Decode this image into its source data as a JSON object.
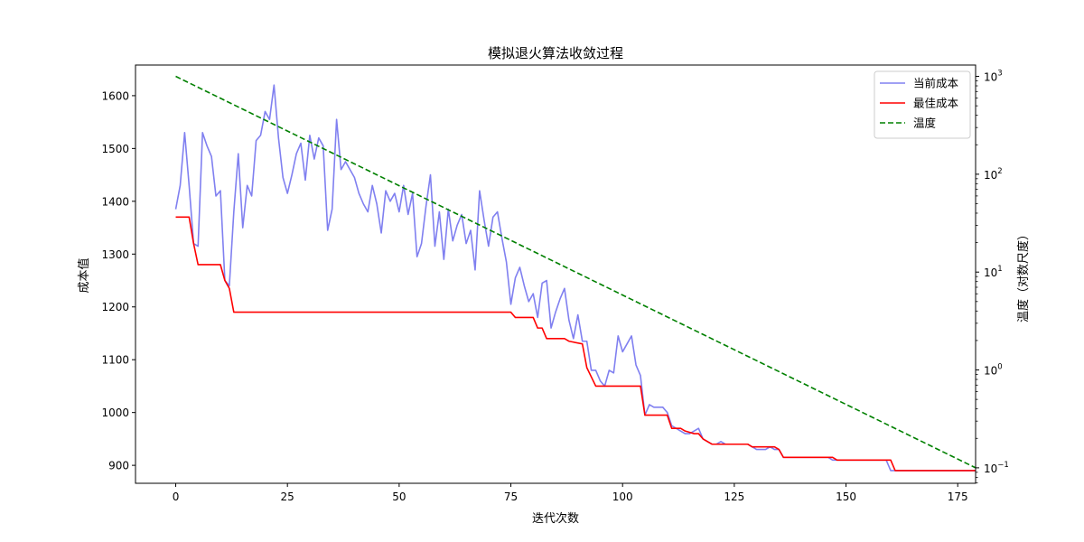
{
  "chart_data": {
    "type": "line",
    "title": "模拟退火算法收敛过程",
    "xlabel": "迭代次数",
    "ylabel": "成本值",
    "y2label": "温度（对数尺度）",
    "xlim": [
      -9,
      179
    ],
    "ylim": [
      866,
      1658
    ],
    "y2lim": [
      0.0695,
      1305
    ],
    "y2scale": "log",
    "xticks": [
      0,
      25,
      50,
      75,
      100,
      125,
      150,
      175
    ],
    "yticks": [
      900,
      1000,
      1100,
      1200,
      1300,
      1400,
      1500,
      1600
    ],
    "y2ticks": [
      0.1,
      1,
      10,
      100,
      1000
    ],
    "y2ticklabels": [
      {
        "base": "10",
        "exp": "−1"
      },
      {
        "base": "10",
        "exp": "0"
      },
      {
        "base": "10",
        "exp": "1"
      },
      {
        "base": "10",
        "exp": "2"
      },
      {
        "base": "10",
        "exp": "3"
      }
    ],
    "grid": false,
    "legend_position": "top-right",
    "series": [
      {
        "name": "当前成本",
        "axis": "left",
        "color": "#8080f0",
        "dash": "solid",
        "points": [
          [
            0,
            1385
          ],
          [
            1,
            1430
          ],
          [
            2,
            1530
          ],
          [
            3,
            1430
          ],
          [
            4,
            1320
          ],
          [
            5,
            1315
          ],
          [
            6,
            1530
          ],
          [
            7,
            1505
          ],
          [
            8,
            1485
          ],
          [
            9,
            1410
          ],
          [
            10,
            1420
          ],
          [
            11,
            1250
          ],
          [
            12,
            1240
          ],
          [
            13,
            1380
          ],
          [
            14,
            1490
          ],
          [
            15,
            1350
          ],
          [
            16,
            1430
          ],
          [
            17,
            1410
          ],
          [
            18,
            1515
          ],
          [
            19,
            1525
          ],
          [
            20,
            1570
          ],
          [
            21,
            1555
          ],
          [
            22,
            1620
          ],
          [
            23,
            1520
          ],
          [
            24,
            1445
          ],
          [
            25,
            1415
          ],
          [
            26,
            1450
          ],
          [
            27,
            1490
          ],
          [
            28,
            1510
          ],
          [
            29,
            1440
          ],
          [
            30,
            1525
          ],
          [
            31,
            1480
          ],
          [
            32,
            1520
          ],
          [
            33,
            1505
          ],
          [
            34,
            1345
          ],
          [
            35,
            1385
          ],
          [
            36,
            1555
          ],
          [
            37,
            1460
          ],
          [
            38,
            1475
          ],
          [
            39,
            1460
          ],
          [
            40,
            1445
          ],
          [
            41,
            1415
          ],
          [
            42,
            1395
          ],
          [
            43,
            1380
          ],
          [
            44,
            1430
          ],
          [
            45,
            1395
          ],
          [
            46,
            1340
          ],
          [
            47,
            1420
          ],
          [
            48,
            1400
          ],
          [
            49,
            1415
          ],
          [
            50,
            1380
          ],
          [
            51,
            1430
          ],
          [
            52,
            1375
          ],
          [
            53,
            1415
          ],
          [
            54,
            1295
          ],
          [
            55,
            1320
          ],
          [
            56,
            1390
          ],
          [
            57,
            1450
          ],
          [
            58,
            1315
          ],
          [
            59,
            1380
          ],
          [
            60,
            1290
          ],
          [
            61,
            1385
          ],
          [
            62,
            1325
          ],
          [
            63,
            1355
          ],
          [
            64,
            1375
          ],
          [
            65,
            1320
          ],
          [
            66,
            1345
          ],
          [
            67,
            1270
          ],
          [
            68,
            1420
          ],
          [
            69,
            1365
          ],
          [
            70,
            1315
          ],
          [
            71,
            1370
          ],
          [
            72,
            1380
          ],
          [
            73,
            1330
          ],
          [
            74,
            1285
          ],
          [
            75,
            1205
          ],
          [
            76,
            1255
          ],
          [
            77,
            1275
          ],
          [
            78,
            1240
          ],
          [
            79,
            1210
          ],
          [
            80,
            1225
          ],
          [
            81,
            1180
          ],
          [
            82,
            1245
          ],
          [
            83,
            1250
          ],
          [
            84,
            1160
          ],
          [
            85,
            1190
          ],
          [
            86,
            1215
          ],
          [
            87,
            1235
          ],
          [
            88,
            1175
          ],
          [
            89,
            1140
          ],
          [
            90,
            1185
          ],
          [
            91,
            1135
          ],
          [
            92,
            1135
          ],
          [
            93,
            1080
          ],
          [
            94,
            1080
          ],
          [
            95,
            1060
          ],
          [
            96,
            1050
          ],
          [
            97,
            1080
          ],
          [
            98,
            1075
          ],
          [
            99,
            1145
          ],
          [
            100,
            1115
          ],
          [
            101,
            1130
          ],
          [
            102,
            1145
          ],
          [
            103,
            1090
          ],
          [
            104,
            1070
          ],
          [
            105,
            995
          ],
          [
            106,
            1015
          ],
          [
            107,
            1010
          ],
          [
            108,
            1010
          ],
          [
            109,
            1010
          ],
          [
            110,
            1000
          ],
          [
            111,
            975
          ],
          [
            112,
            970
          ],
          [
            113,
            965
          ],
          [
            114,
            960
          ],
          [
            115,
            960
          ],
          [
            116,
            965
          ],
          [
            117,
            970
          ],
          [
            118,
            950
          ],
          [
            119,
            945
          ],
          [
            120,
            940
          ],
          [
            121,
            940
          ],
          [
            122,
            945
          ],
          [
            123,
            940
          ],
          [
            124,
            940
          ],
          [
            125,
            940
          ],
          [
            126,
            940
          ],
          [
            127,
            940
          ],
          [
            128,
            940
          ],
          [
            129,
            935
          ],
          [
            130,
            930
          ],
          [
            131,
            930
          ],
          [
            132,
            930
          ],
          [
            133,
            935
          ],
          [
            134,
            930
          ],
          [
            135,
            930
          ],
          [
            136,
            915
          ],
          [
            137,
            915
          ],
          [
            138,
            915
          ],
          [
            139,
            915
          ],
          [
            140,
            915
          ],
          [
            141,
            915
          ],
          [
            142,
            915
          ],
          [
            143,
            915
          ],
          [
            144,
            915
          ],
          [
            145,
            915
          ],
          [
            146,
            915
          ],
          [
            147,
            910
          ],
          [
            148,
            910
          ],
          [
            149,
            910
          ],
          [
            150,
            910
          ],
          [
            151,
            910
          ],
          [
            152,
            910
          ],
          [
            153,
            910
          ],
          [
            154,
            910
          ],
          [
            155,
            910
          ],
          [
            156,
            910
          ],
          [
            157,
            910
          ],
          [
            158,
            910
          ],
          [
            159,
            910
          ],
          [
            160,
            890
          ],
          [
            161,
            890
          ],
          [
            162,
            890
          ],
          [
            163,
            890
          ],
          [
            164,
            890
          ],
          [
            165,
            890
          ],
          [
            166,
            890
          ],
          [
            167,
            890
          ],
          [
            168,
            890
          ],
          [
            169,
            890
          ],
          [
            170,
            890
          ],
          [
            171,
            890
          ],
          [
            172,
            890
          ],
          [
            173,
            890
          ],
          [
            174,
            890
          ],
          [
            175,
            890
          ],
          [
            176,
            890
          ],
          [
            177,
            890
          ],
          [
            178,
            890
          ],
          [
            179,
            890
          ]
        ]
      },
      {
        "name": "最佳成本",
        "axis": "left",
        "color": "#ff0000",
        "dash": "solid",
        "points": [
          [
            0,
            1370
          ],
          [
            3,
            1370
          ],
          [
            4,
            1320
          ],
          [
            5,
            1280
          ],
          [
            10,
            1280
          ],
          [
            11,
            1250
          ],
          [
            12,
            1235
          ],
          [
            13,
            1190
          ],
          [
            75,
            1190
          ],
          [
            76,
            1180
          ],
          [
            80,
            1180
          ],
          [
            81,
            1160
          ],
          [
            82,
            1160
          ],
          [
            83,
            1140
          ],
          [
            87,
            1140
          ],
          [
            88,
            1135
          ],
          [
            91,
            1130
          ],
          [
            92,
            1085
          ],
          [
            94,
            1050
          ],
          [
            104,
            1050
          ],
          [
            105,
            995
          ],
          [
            110,
            995
          ],
          [
            111,
            970
          ],
          [
            113,
            970
          ],
          [
            114,
            965
          ],
          [
            116,
            960
          ],
          [
            117,
            960
          ],
          [
            118,
            950
          ],
          [
            119,
            945
          ],
          [
            120,
            940
          ],
          [
            128,
            940
          ],
          [
            129,
            935
          ],
          [
            134,
            935
          ],
          [
            135,
            930
          ],
          [
            136,
            915
          ],
          [
            147,
            915
          ],
          [
            148,
            910
          ],
          [
            160,
            910
          ],
          [
            161,
            890
          ],
          [
            179,
            890
          ]
        ]
      },
      {
        "name": "温度",
        "axis": "right",
        "color": "#008000",
        "dash": "dashed",
        "points": [
          [
            0,
            1000
          ],
          [
            179,
            0.1
          ]
        ]
      }
    ]
  }
}
